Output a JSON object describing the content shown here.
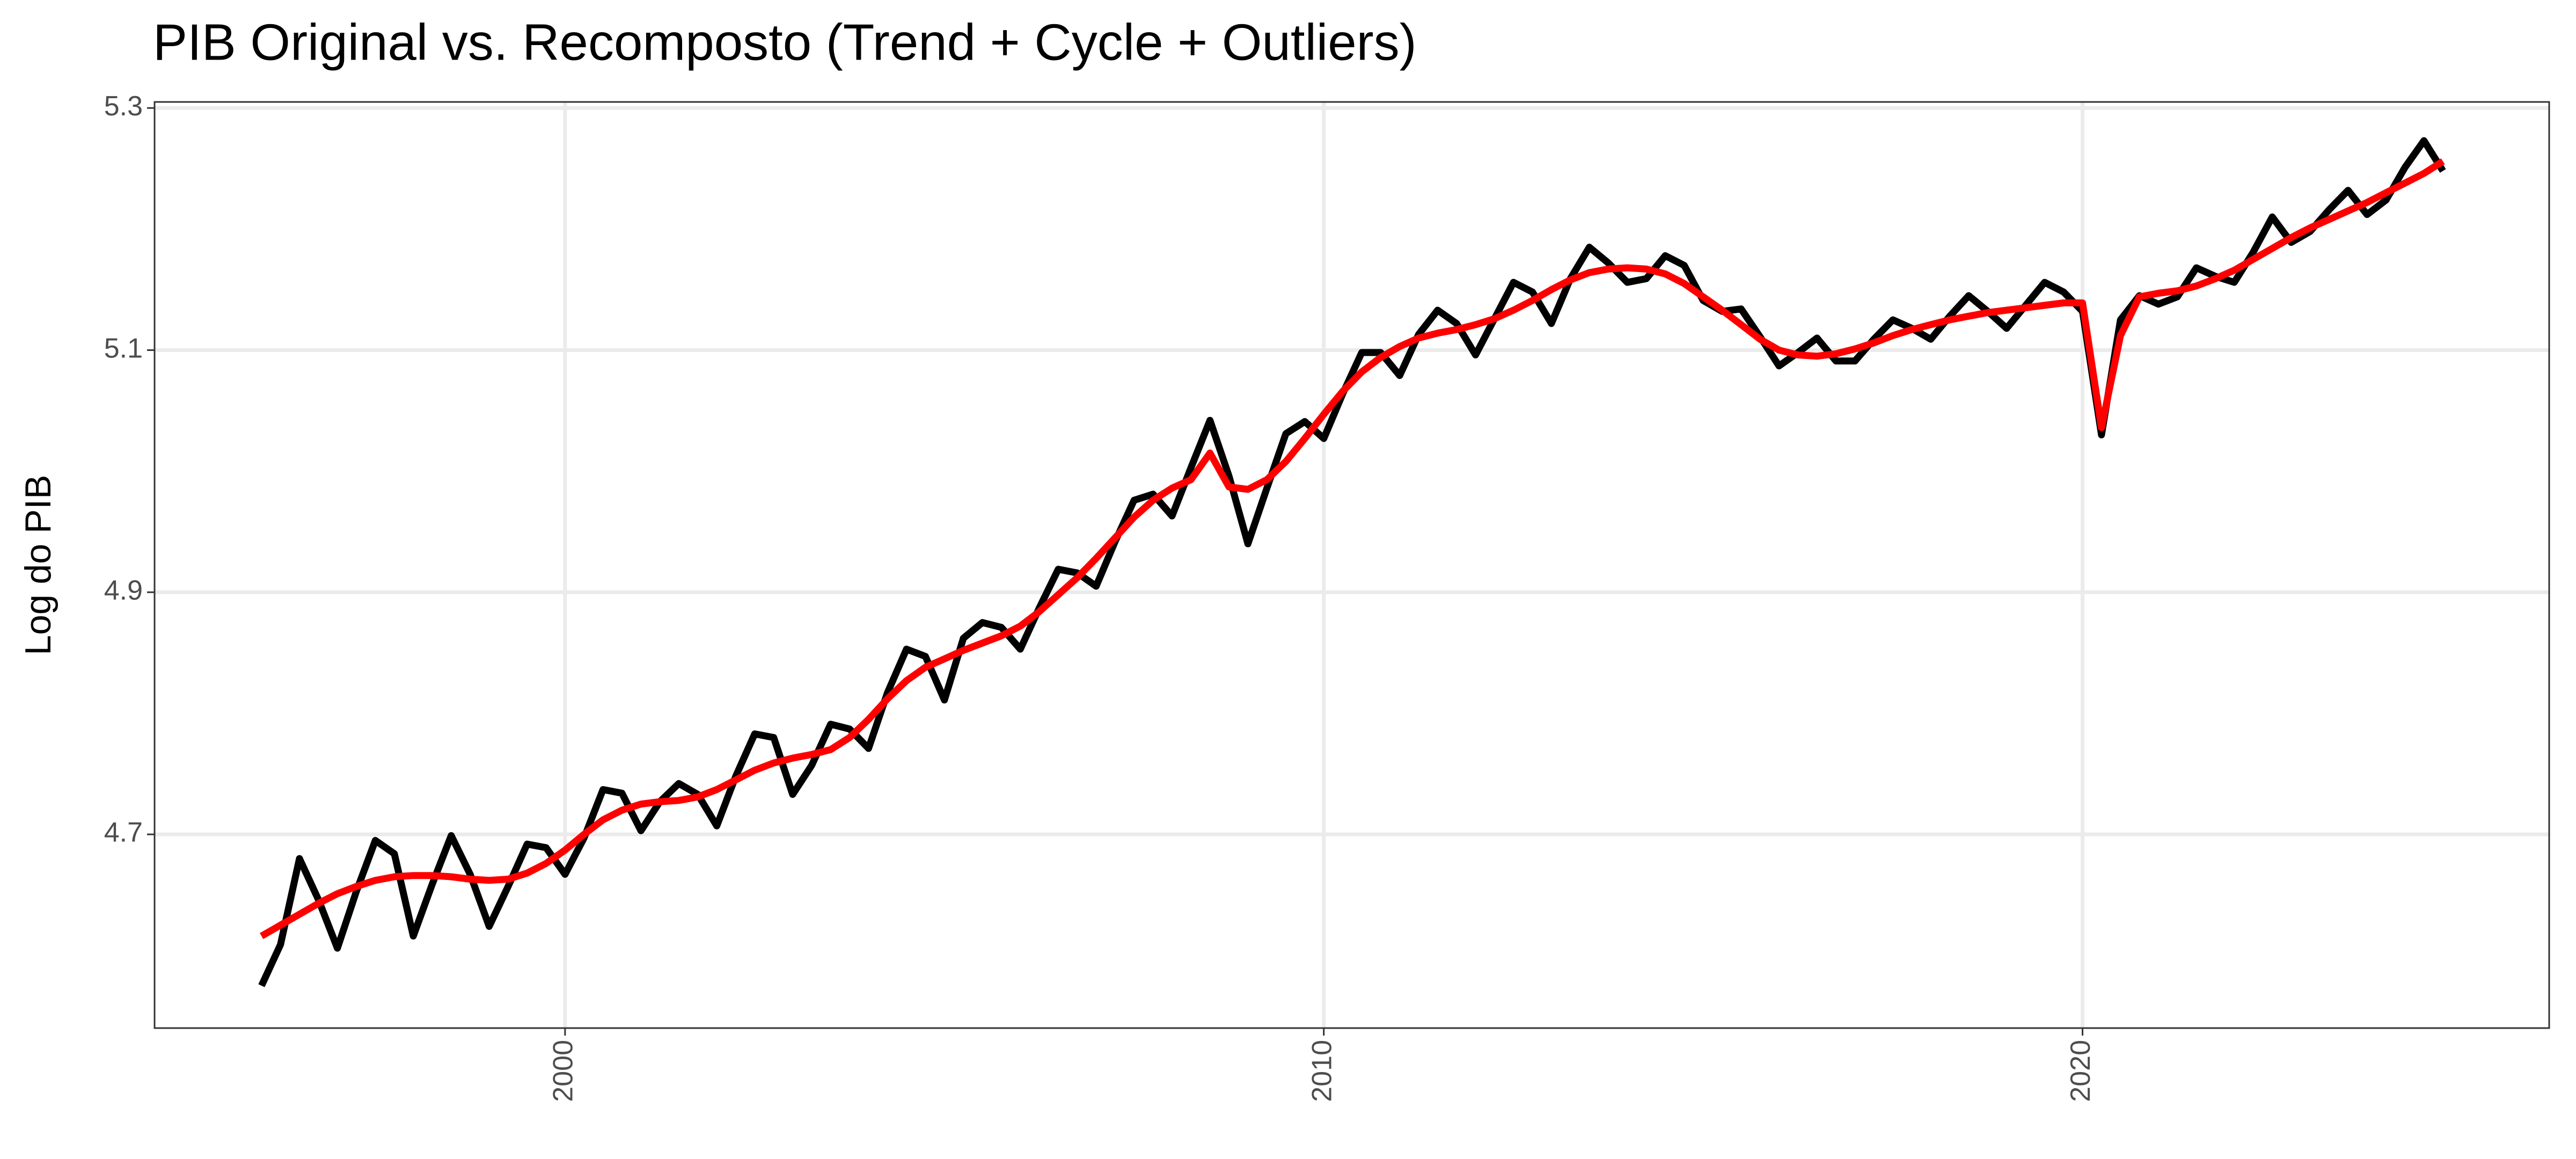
{
  "chart_data": {
    "type": "line",
    "title": "PIB Original vs. Recomposto (Trend + Cycle + Outliers)",
    "y_label": "Log do PIB",
    "x": [
      1996,
      1996.25,
      1996.5,
      1996.75,
      1997,
      1997.25,
      1997.5,
      1997.75,
      1998,
      1998.25,
      1998.5,
      1998.75,
      1999,
      1999.25,
      1999.5,
      1999.75,
      2000,
      2000.25,
      2000.5,
      2000.75,
      2001,
      2001.25,
      2001.5,
      2001.75,
      2002,
      2002.25,
      2002.5,
      2002.75,
      2003,
      2003.25,
      2003.5,
      2003.75,
      2004,
      2004.25,
      2004.5,
      2004.75,
      2005,
      2005.25,
      2005.5,
      2005.75,
      2006,
      2006.25,
      2006.5,
      2006.75,
      2007,
      2007.25,
      2007.5,
      2007.75,
      2008,
      2008.25,
      2008.5,
      2008.75,
      2009,
      2009.25,
      2009.5,
      2009.75,
      2010,
      2010.25,
      2010.5,
      2010.75,
      2011,
      2011.25,
      2011.5,
      2011.75,
      2012,
      2012.25,
      2012.5,
      2012.75,
      2013,
      2013.25,
      2013.5,
      2013.75,
      2014,
      2014.25,
      2014.5,
      2014.75,
      2015,
      2015.25,
      2015.5,
      2015.75,
      2016,
      2016.25,
      2016.5,
      2016.75,
      2017,
      2017.25,
      2017.5,
      2017.75,
      2018,
      2018.25,
      2018.5,
      2018.75,
      2019,
      2019.25,
      2019.5,
      2019.75,
      2020,
      2020.25,
      2020.5,
      2020.75,
      2021,
      2021.25,
      2021.5,
      2021.75,
      2022,
      2022.25,
      2022.5,
      2022.75,
      2023,
      2023.25,
      2023.5,
      2023.75,
      2024,
      2024.25,
      2024.5,
      2024.75
    ],
    "series": [
      {
        "color": "#000000",
        "values": [
          4.575,
          4.609,
          4.68,
          4.646,
          4.606,
          4.653,
          4.695,
          4.684,
          4.616,
          4.659,
          4.699,
          4.667,
          4.624,
          4.657,
          4.692,
          4.689,
          4.667,
          4.697,
          4.737,
          4.734,
          4.703,
          4.727,
          4.742,
          4.733,
          4.707,
          4.748,
          4.783,
          4.78,
          4.733,
          4.757,
          4.791,
          4.787,
          4.771,
          4.817,
          4.853,
          4.847,
          4.811,
          4.862,
          4.875,
          4.871,
          4.853,
          4.887,
          4.919,
          4.916,
          4.905,
          4.942,
          4.976,
          4.981,
          4.963,
          5.003,
          5.042,
          4.996,
          4.94,
          4.986,
          5.031,
          5.041,
          5.027,
          5.064,
          5.098,
          5.098,
          5.079,
          5.113,
          5.133,
          5.122,
          5.096,
          5.126,
          5.156,
          5.148,
          5.122,
          5.159,
          5.185,
          5.172,
          5.156,
          5.159,
          5.178,
          5.17,
          5.141,
          5.132,
          5.134,
          5.111,
          5.087,
          5.098,
          5.11,
          5.091,
          5.091,
          5.109,
          5.125,
          5.118,
          5.109,
          5.128,
          5.145,
          5.132,
          5.118,
          5.137,
          5.156,
          5.148,
          5.132,
          5.03,
          5.125,
          5.145,
          5.138,
          5.144,
          5.168,
          5.161,
          5.156,
          5.181,
          5.21,
          5.189,
          5.198,
          5.216,
          5.232,
          5.212,
          5.224,
          5.251,
          5.273,
          5.248
        ]
      },
      {
        "color": "#ff0000",
        "values": [
          4.616,
          4.625,
          4.634,
          4.643,
          4.651,
          4.657,
          4.662,
          4.665,
          4.666,
          4.666,
          4.665,
          4.663,
          4.662,
          4.663,
          4.668,
          4.676,
          4.687,
          4.7,
          4.712,
          4.72,
          4.725,
          4.727,
          4.728,
          4.731,
          4.737,
          4.745,
          4.753,
          4.759,
          4.763,
          4.766,
          4.77,
          4.78,
          4.795,
          4.812,
          4.827,
          4.838,
          4.845,
          4.852,
          4.858,
          4.864,
          4.872,
          4.884,
          4.898,
          4.912,
          4.928,
          4.945,
          4.962,
          4.976,
          4.986,
          4.993,
          5.015,
          4.987,
          4.985,
          4.993,
          5.008,
          5.027,
          5.047,
          5.066,
          5.082,
          5.094,
          5.103,
          5.11,
          5.114,
          5.117,
          5.121,
          5.126,
          5.133,
          5.141,
          5.15,
          5.158,
          5.164,
          5.167,
          5.168,
          5.167,
          5.163,
          5.155,
          5.144,
          5.133,
          5.121,
          5.109,
          5.1,
          5.096,
          5.095,
          5.097,
          5.101,
          5.106,
          5.112,
          5.117,
          5.121,
          5.125,
          5.128,
          5.131,
          5.133,
          5.135,
          5.137,
          5.139,
          5.139,
          5.036,
          5.112,
          5.144,
          5.147,
          5.149,
          5.153,
          5.159,
          5.166,
          5.175,
          5.184,
          5.193,
          5.201,
          5.208,
          5.215,
          5.222,
          5.23,
          5.238,
          5.246,
          5.256
        ]
      }
    ],
    "xlim": [
      1994.59,
      2026.15
    ],
    "xticks": [
      2000,
      2010,
      2020
    ],
    "ylim": [
      4.54,
      5.305
    ],
    "yticks": [
      4.7,
      4.9,
      5.1,
      5.3
    ],
    "grid": true
  }
}
